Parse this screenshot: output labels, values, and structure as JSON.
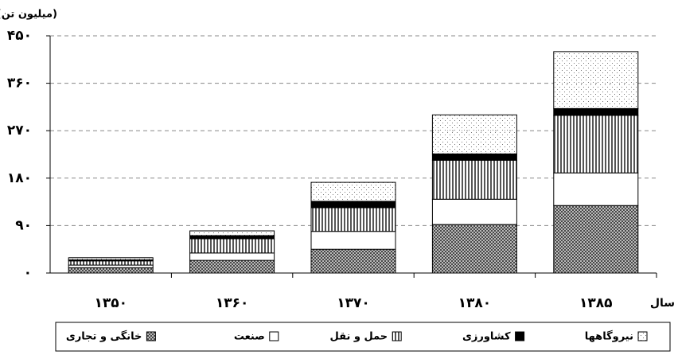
{
  "chart_data": {
    "type": "stacked-bar",
    "y_label": "(میلیون تن)",
    "x_label": "سال",
    "categories": [
      "۱۳۵۰",
      "۱۳۶۰",
      "۱۳۷۰",
      "۱۳۸۰",
      "۱۳۸۵"
    ],
    "series": [
      {
        "name": "خانگی و تجاری",
        "color": "#444444",
        "pattern": "crosshatch",
        "values": [
          10,
          24,
          45,
          92,
          128
        ]
      },
      {
        "name": "صنعت",
        "color": "#ffffff",
        "pattern": "none",
        "values": [
          5,
          14,
          34,
          48,
          62
        ]
      },
      {
        "name": "حمل و نقل",
        "color": "#555555",
        "pattern": "vertical",
        "values": [
          8,
          27,
          45,
          74,
          109
        ]
      },
      {
        "name": "کشاورزی",
        "color": "#000000",
        "pattern": "none",
        "values": [
          2,
          6,
          12,
          12,
          13
        ]
      },
      {
        "name": "نیروگاهها",
        "color": "#777777",
        "pattern": "dots",
        "values": [
          4,
          9,
          36,
          74,
          108
        ]
      }
    ],
    "ylim": [
      0,
      450
    ],
    "yticks": [
      {
        "value": 0,
        "label": "۰"
      },
      {
        "value": 90,
        "label": "۹۰"
      },
      {
        "value": 180,
        "label": "۱۸۰"
      },
      {
        "value": 270,
        "label": "۲۷۰"
      },
      {
        "value": 360,
        "label": "۳۶۰"
      },
      {
        "value": 450,
        "label": "۴۵۰"
      }
    ],
    "grid": true
  }
}
